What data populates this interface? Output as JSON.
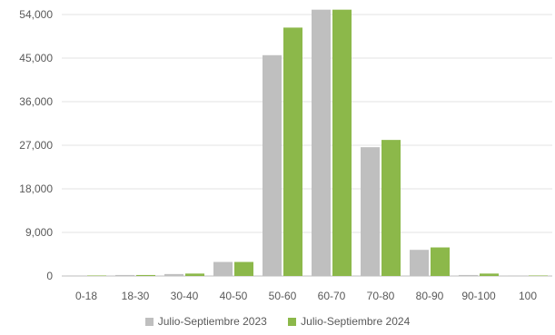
{
  "chart_data": {
    "type": "bar",
    "title": "",
    "xlabel": "",
    "ylabel": "",
    "ylim": [
      0,
      54000
    ],
    "yticks": [
      "0",
      "9,000",
      "18,000",
      "27,000",
      "36,000",
      "45,000",
      "54,000"
    ],
    "ytick_values": [
      0,
      9000,
      18000,
      27000,
      36000,
      45000,
      54000
    ],
    "categories": [
      "0-18",
      "18-30",
      "30-40",
      "40-50",
      "50-60",
      "60-70",
      "70-80",
      "80-90",
      "90-100",
      "100"
    ],
    "series": [
      {
        "name": "Julio-Septiembre 2023",
        "color": "#bfbfbf",
        "values": [
          100,
          200,
          400,
          2900,
          45600,
          55000,
          26600,
          5400,
          200,
          100
        ]
      },
      {
        "name": "Julio-Septiembre 2024",
        "color": "#8cb84a",
        "values": [
          100,
          200,
          500,
          2900,
          51300,
          55000,
          28100,
          5900,
          500,
          100
        ]
      }
    ],
    "grid": true,
    "legend_position": "bottom"
  }
}
